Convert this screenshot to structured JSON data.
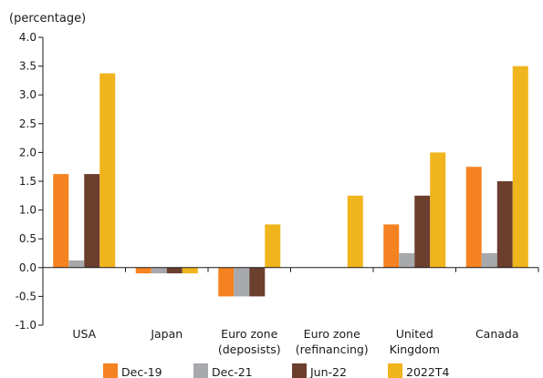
{
  "chart_data": {
    "type": "bar",
    "unit_label": "(percentage)",
    "categories": [
      [
        "USA"
      ],
      [
        "Japan"
      ],
      [
        "Euro zone",
        "(deposists)"
      ],
      [
        "Euro zone",
        "(refinancing)"
      ],
      [
        "United",
        "Kingdom"
      ],
      [
        "Canada"
      ]
    ],
    "series": [
      {
        "name": "Dec-19",
        "color": "#f58220",
        "values": [
          1.625,
          -0.1,
          -0.5,
          0,
          0.75,
          1.75
        ]
      },
      {
        "name": "Dec-21",
        "color": "#a7a9ac",
        "values": [
          0.125,
          -0.1,
          -0.5,
          0,
          0.25,
          0.25
        ]
      },
      {
        "name": "Jun-22",
        "color": "#6b3e2e",
        "values": [
          1.625,
          -0.1,
          -0.5,
          0,
          1.25,
          1.5
        ]
      },
      {
        "name": "2022T4",
        "color": "#f0b41c",
        "values": [
          3.375,
          -0.1,
          0.75,
          1.25,
          2.0,
          3.5
        ]
      }
    ],
    "yticks": [
      "4.0",
      "3.5",
      "3.0",
      "2.5",
      "2.0",
      "1.5",
      "1.0",
      "0.5",
      "0.0",
      "-0.5",
      "-1.0"
    ],
    "ylim": [
      -1.0,
      4.0
    ],
    "grid": false,
    "legend_position": "bottom"
  }
}
